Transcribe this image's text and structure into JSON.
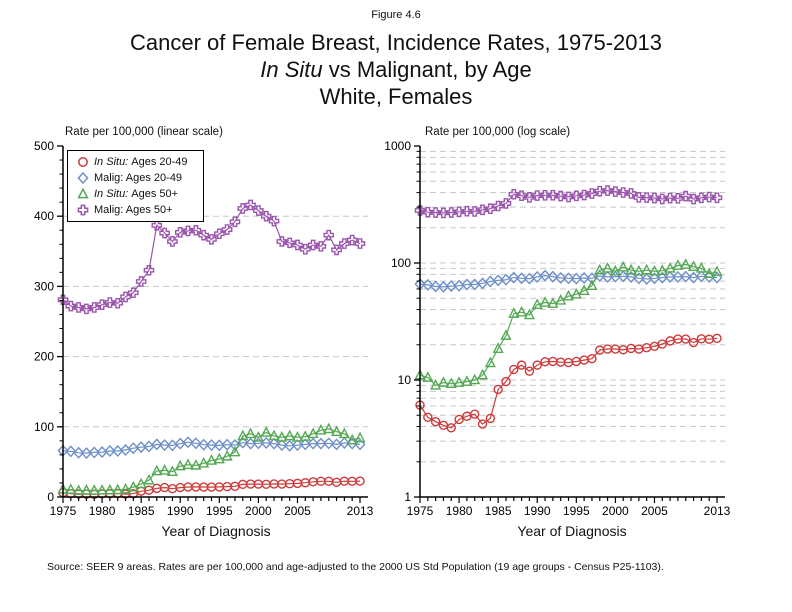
{
  "figure_label": "Figure 4.6",
  "title": {
    "line1": "Cancer of Female Breast, Incidence Rates, 1975-2013",
    "line2_em": "In Situ",
    "line2_rest": " vs Malignant, by Age",
    "line3": "White, Females"
  },
  "source": "Source: SEER 9 areas. Rates are per 100,000 and age-adjusted to the 2000 US Std Population (19 age groups - Census P25-1103).",
  "chart_data": {
    "type": "line",
    "xlabel": "Year of Diagnosis",
    "x": [
      1975,
      1976,
      1977,
      1978,
      1979,
      1980,
      1981,
      1982,
      1983,
      1984,
      1985,
      1986,
      1987,
      1988,
      1989,
      1990,
      1991,
      1992,
      1993,
      1994,
      1995,
      1996,
      1997,
      1998,
      1999,
      2000,
      2001,
      2002,
      2003,
      2004,
      2005,
      2006,
      2007,
      2008,
      2009,
      2010,
      2011,
      2012,
      2013
    ],
    "x_tick_labels": [
      1975,
      1980,
      1985,
      1990,
      1995,
      2000,
      2005,
      2013
    ],
    "panels": [
      {
        "title": "Rate per 100,000 (linear scale)",
        "scale": "linear",
        "ylim": [
          0,
          500
        ],
        "yticks": [
          0,
          100,
          200,
          300,
          400,
          500
        ],
        "ytick_minor_step": 20,
        "grid": "dashed-horizontal",
        "has_legend": true
      },
      {
        "title": "Rate per 100,000 (log scale)",
        "scale": "log",
        "ylim": [
          1,
          1000
        ],
        "yticks": [
          1,
          10,
          100,
          1000
        ],
        "grid": "dashed-horizontal",
        "has_legend": false
      }
    ],
    "series": [
      {
        "name": "In Situ: Ages 20-49",
        "legend_em": "In Situ:",
        "legend_rest": "Ages 20-49",
        "marker": "circle",
        "color": "#cc3a3a",
        "values": [
          6.1,
          4.8,
          4.4,
          4.1,
          3.9,
          4.6,
          4.9,
          5.1,
          4.2,
          4.7,
          8.3,
          9.7,
          12.3,
          13.4,
          11.9,
          13.4,
          14.3,
          14.4,
          14.2,
          14.1,
          14.4,
          14.8,
          15.2,
          18.0,
          18.4,
          18.4,
          18.1,
          18.6,
          18.4,
          18.9,
          19.4,
          20.3,
          21.6,
          22.4,
          22.4,
          20.9,
          22.5,
          22.3,
          22.7
        ]
      },
      {
        "name": "Malig: Ages 20-49",
        "legend_em": "",
        "legend_rest": "Malig: Ages 20-49",
        "marker": "diamond",
        "color": "#6e8fc9",
        "values": [
          66,
          65,
          63,
          62.5,
          63.5,
          64,
          65.5,
          65.5,
          67,
          69.5,
          71,
          72,
          75,
          74,
          73.5,
          76,
          78,
          76.5,
          74.5,
          74,
          73.5,
          74.5,
          74,
          77.5,
          76,
          76.5,
          77,
          76,
          74,
          73,
          74,
          75,
          76,
          76,
          76.5,
          75,
          77,
          76,
          75
        ]
      },
      {
        "name": "In Situ: Ages 50+",
        "legend_em": "In Situ:",
        "legend_rest": "Ages 50+",
        "marker": "triangle",
        "color": "#55a855",
        "values": [
          11,
          10.5,
          9,
          9.5,
          9.3,
          9.5,
          9.7,
          10,
          11,
          14,
          18.5,
          24,
          37,
          38,
          36,
          44,
          46,
          45,
          48,
          52,
          54,
          58,
          64,
          87,
          90,
          85,
          92,
          87,
          85,
          87,
          85,
          86,
          90,
          95,
          97,
          93,
          90,
          81,
          84
        ]
      },
      {
        "name": "Malig: Ages 50+",
        "legend_em": "",
        "legend_rest": "Malig: Ages 50+",
        "marker": "cross",
        "color": "#9a55ad",
        "values": [
          281,
          272,
          270,
          268,
          270,
          274,
          277,
          276,
          285,
          291,
          307,
          323,
          387,
          376,
          364,
          377,
          379,
          380,
          373,
          367,
          375,
          381,
          392,
          411,
          416,
          408,
          400,
          393,
          364,
          362,
          359,
          353,
          359,
          357,
          373,
          352,
          361,
          366,
          361
        ]
      }
    ]
  }
}
